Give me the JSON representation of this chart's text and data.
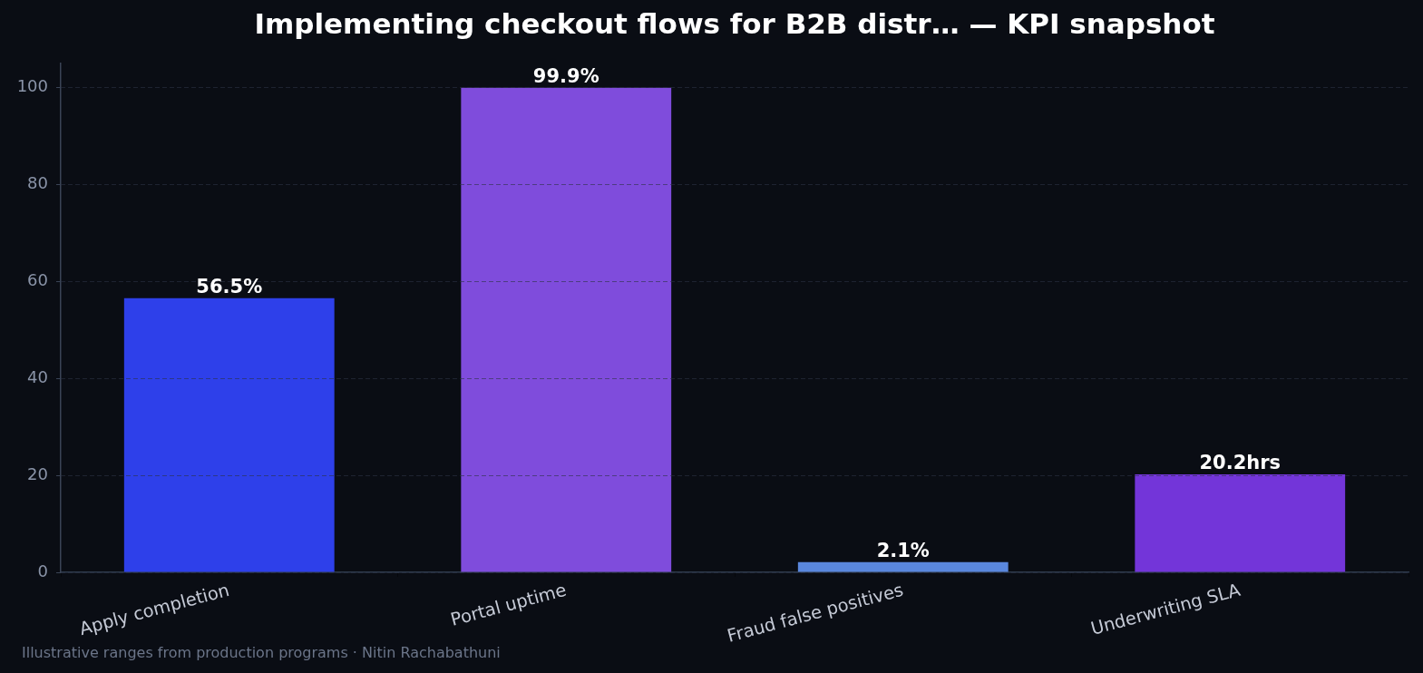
{
  "chart_data": {
    "type": "bar",
    "title": "Implementing checkout flows for B2B distr… — KPI snapshot",
    "categories": [
      "Apply completion",
      "Portal uptime",
      "Fraud false positives",
      "Underwriting SLA"
    ],
    "values": [
      56.5,
      99.9,
      2.1,
      20.2
    ],
    "colors": [
      "#2e40ea",
      "#7f4cdc",
      "#5a87dd",
      "#7335d9"
    ],
    "value_labels": [
      "56.5%",
      "99.9%",
      "2.1%",
      "20.2hrs"
    ],
    "ylim": [
      0,
      104.9
    ],
    "yticks": [
      0,
      20,
      40,
      60,
      80,
      100
    ],
    "grid": "y",
    "annotations": [
      "Illustrative ranges from production programs · Nitin Rachabathuni"
    ]
  }
}
